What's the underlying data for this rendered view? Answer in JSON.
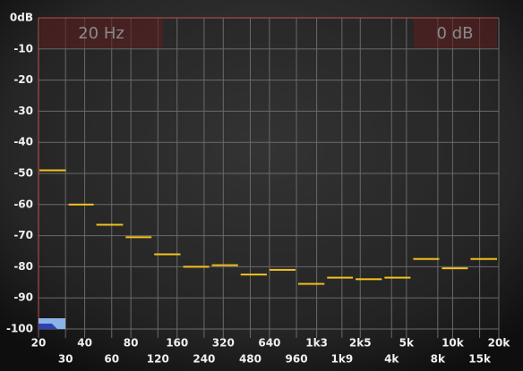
{
  "chart_data": {
    "type": "histogram",
    "readouts": [
      "20 Hz",
      "0 dB"
    ],
    "bins": [
      20,
      31,
      47,
      73,
      112,
      173,
      266,
      410,
      632,
      972,
      1500,
      2300,
      3550,
      5460,
      8400,
      12900,
      20000
    ],
    "values": [
      -49,
      -60,
      -66.5,
      -70.5,
      -76,
      -80,
      -79.5,
      -82.5,
      -81,
      -85.5,
      -83.5,
      -84,
      -83.5,
      -77.5,
      -80.5,
      -77.5
    ],
    "color": "#f2c21e",
    "xscale": "log",
    "xlim": [
      20,
      20000
    ],
    "xticks": [
      20,
      30,
      40,
      60,
      80,
      120,
      160,
      240,
      320,
      480,
      640,
      960,
      {
        "value": 1300,
        "label": "1k3"
      },
      {
        "value": 1900,
        "label": "1k9"
      },
      {
        "value": 2500,
        "label": "2k5"
      },
      {
        "value": 4000,
        "label": "4k"
      },
      {
        "value": 5000,
        "label": "5k"
      },
      {
        "value": 8000,
        "label": "8k"
      },
      {
        "value": 10000,
        "label": "10k"
      },
      {
        "value": 15000,
        "label": "15k"
      },
      {
        "value": 20000,
        "label": "20k"
      }
    ],
    "ylim": [
      -100,
      0
    ],
    "yticks": [
      {
        "value": 0,
        "label": "0dB"
      },
      -10,
      -20,
      -30,
      -40,
      -50,
      -60,
      -70,
      -80,
      -90,
      -100
    ],
    "grid": true
  }
}
